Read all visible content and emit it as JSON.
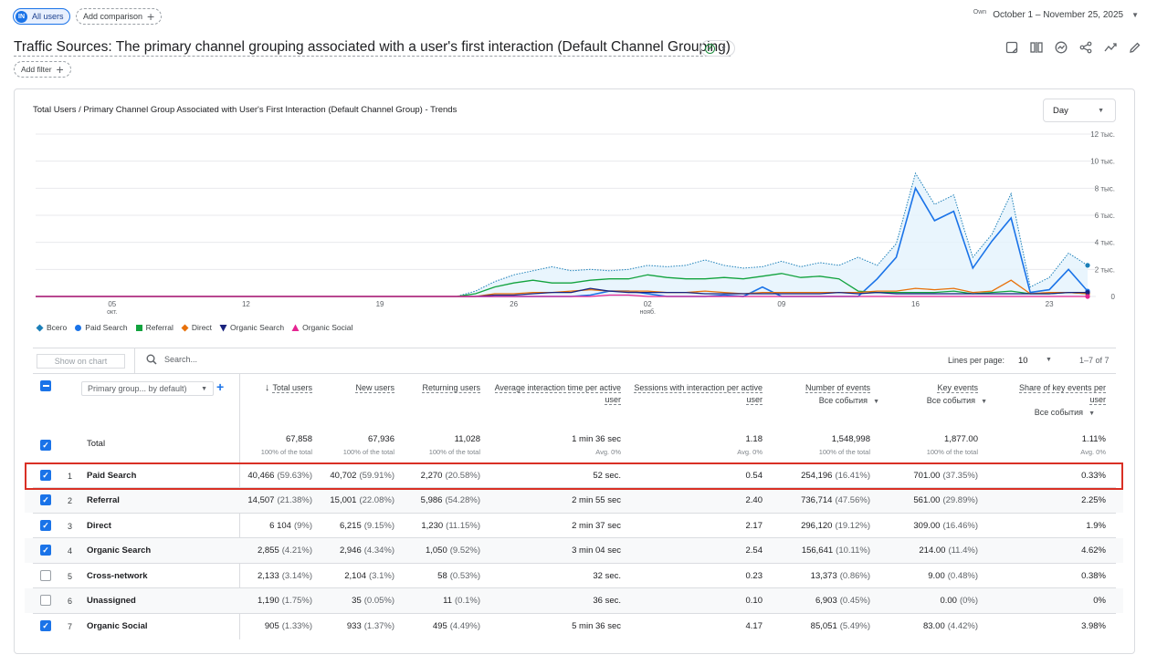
{
  "segment": {
    "avatar": "IN",
    "label": "All users"
  },
  "add_comparison": "Add comparison",
  "date": {
    "own": "Own",
    "range": "October 1 – November 25, 2025"
  },
  "report_title": "Traffic Sources: The primary channel grouping associated with a user's first interaction (Default Channel Grouping)",
  "add_filter": "Add filter",
  "toolbar_icons": [
    "edit-comparison-icon",
    "compare-columns-icon",
    "insights-icon",
    "share-icon",
    "trending-icon",
    "pencil-icon"
  ],
  "chart": {
    "title": "Total Users / Primary Channel Group Associated with User's First Interaction (Default Channel Group) - Trends",
    "granularity": "Day",
    "y_ticks": [
      "12 тыс.",
      "10 тыс.",
      "8 тыс.",
      "6 тыс.",
      "4 тыс.",
      "2 тыс.",
      "0"
    ],
    "x_ticks": [
      {
        "label": "05",
        "sub": "окт."
      },
      {
        "label": "12",
        "sub": ""
      },
      {
        "label": "19",
        "sub": ""
      },
      {
        "label": "26",
        "sub": ""
      },
      {
        "label": "02",
        "sub": "нояб."
      },
      {
        "label": "09",
        "sub": ""
      },
      {
        "label": "16",
        "sub": ""
      },
      {
        "label": "23",
        "sub": ""
      }
    ],
    "legend": [
      {
        "name": "Всего",
        "color": "#1b7fb8",
        "marker": "diamond"
      },
      {
        "name": "Paid Search",
        "color": "#1a73e8",
        "marker": "circle"
      },
      {
        "name": "Referral",
        "color": "#12a33e",
        "marker": "square"
      },
      {
        "name": "Direct",
        "color": "#e8710a",
        "marker": "diamond"
      },
      {
        "name": "Organic Search",
        "color": "#1a237e",
        "marker": "triangle-down"
      },
      {
        "name": "Organic Social",
        "color": "#e52592",
        "marker": "triangle"
      }
    ]
  },
  "chart_data": {
    "type": "line",
    "x": [
      "2025-10-01",
      "2025-10-02",
      "2025-10-03",
      "2025-10-04",
      "2025-10-05",
      "2025-10-06",
      "2025-10-07",
      "2025-10-08",
      "2025-10-09",
      "2025-10-10",
      "2025-10-11",
      "2025-10-12",
      "2025-10-13",
      "2025-10-14",
      "2025-10-15",
      "2025-10-16",
      "2025-10-17",
      "2025-10-18",
      "2025-10-19",
      "2025-10-20",
      "2025-10-21",
      "2025-10-22",
      "2025-10-23",
      "2025-10-24",
      "2025-10-25",
      "2025-10-26",
      "2025-10-27",
      "2025-10-28",
      "2025-10-29",
      "2025-10-30",
      "2025-10-31",
      "2025-11-01",
      "2025-11-02",
      "2025-11-03",
      "2025-11-04",
      "2025-11-05",
      "2025-11-06",
      "2025-11-07",
      "2025-11-08",
      "2025-11-09",
      "2025-11-10",
      "2025-11-11",
      "2025-11-12",
      "2025-11-13",
      "2025-11-14",
      "2025-11-15",
      "2025-11-16",
      "2025-11-17",
      "2025-11-18",
      "2025-11-19",
      "2025-11-20",
      "2025-11-21",
      "2025-11-22",
      "2025-11-23",
      "2025-11-24",
      "2025-11-25"
    ],
    "ylim": [
      0,
      12000
    ],
    "series": [
      {
        "name": "Всего",
        "values": [
          0,
          0,
          0,
          0,
          0,
          0,
          0,
          0,
          0,
          0,
          0,
          0,
          0,
          0,
          0,
          0,
          0,
          0,
          0,
          0,
          0,
          0,
          0,
          400,
          1100,
          1600,
          1900,
          2200,
          1900,
          2000,
          1900,
          2000,
          2300,
          2200,
          2300,
          2700,
          2300,
          2100,
          2200,
          2600,
          2200,
          2500,
          2300,
          2900,
          2300,
          3900,
          9100,
          6800,
          7500,
          2900,
          4600,
          7600,
          700,
          1400,
          3200,
          2300
        ]
      },
      {
        "name": "Paid Search",
        "values": [
          0,
          0,
          0,
          0,
          0,
          0,
          0,
          0,
          0,
          0,
          0,
          0,
          0,
          0,
          0,
          0,
          0,
          0,
          0,
          0,
          0,
          0,
          0,
          0,
          0,
          0,
          0,
          0,
          0,
          100,
          400,
          400,
          200,
          0,
          0,
          0,
          100,
          0,
          700,
          0,
          0,
          0,
          0,
          0,
          1300,
          2900,
          8000,
          5600,
          6300,
          2100,
          4100,
          5800,
          300,
          500,
          2000,
          400
        ]
      },
      {
        "name": "Referral",
        "values": [
          0,
          0,
          0,
          0,
          0,
          0,
          0,
          0,
          0,
          0,
          0,
          0,
          0,
          0,
          0,
          0,
          0,
          0,
          0,
          0,
          0,
          0,
          0,
          200,
          700,
          1000,
          1200,
          1000,
          1000,
          1200,
          1300,
          1300,
          1600,
          1400,
          1300,
          1300,
          1400,
          1300,
          1500,
          1700,
          1400,
          1500,
          1300,
          400,
          300,
          300,
          300,
          300,
          400,
          200,
          300,
          400,
          200,
          200,
          300,
          200
        ]
      },
      {
        "name": "Direct",
        "values": [
          0,
          0,
          0,
          0,
          0,
          0,
          0,
          0,
          0,
          0,
          0,
          0,
          0,
          0,
          0,
          0,
          0,
          0,
          0,
          0,
          0,
          0,
          0,
          0,
          200,
          200,
          300,
          300,
          400,
          500,
          400,
          400,
          400,
          300,
          300,
          400,
          300,
          200,
          300,
          300,
          300,
          300,
          300,
          300,
          400,
          400,
          600,
          500,
          600,
          300,
          400,
          1200,
          200,
          300,
          300,
          200
        ]
      },
      {
        "name": "Organic Search",
        "values": [
          0,
          0,
          0,
          0,
          0,
          0,
          0,
          0,
          0,
          0,
          0,
          0,
          0,
          0,
          0,
          0,
          0,
          0,
          0,
          0,
          0,
          0,
          0,
          0,
          100,
          100,
          200,
          300,
          300,
          600,
          400,
          300,
          300,
          300,
          300,
          200,
          200,
          200,
          200,
          200,
          200,
          200,
          300,
          200,
          300,
          200,
          200,
          200,
          200,
          200,
          200,
          200,
          200,
          200,
          300,
          300
        ]
      },
      {
        "name": "Organic Social",
        "values": [
          0,
          0,
          0,
          0,
          0,
          0,
          0,
          0,
          0,
          0,
          0,
          0,
          0,
          0,
          0,
          0,
          0,
          0,
          0,
          0,
          0,
          0,
          0,
          0,
          0,
          0,
          0,
          0,
          0,
          0,
          100,
          100,
          0,
          0,
          0,
          0,
          0,
          0,
          0,
          0,
          0,
          0,
          0,
          0,
          0,
          0,
          0,
          0,
          0,
          0,
          0,
          0,
          0,
          0,
          0,
          0
        ]
      }
    ],
    "xlabel": "",
    "ylabel": ""
  },
  "table_toolbar": {
    "show_on_chart": "Show on chart",
    "search_placeholder": "Search...",
    "lines_per_page_label": "Lines per page:",
    "lines_per_page": "10",
    "pagination": "1–7 of 7"
  },
  "dimension_select": "Primary group... by default)",
  "columns": [
    {
      "label": "Total users",
      "sorted": true,
      "filter": ""
    },
    {
      "label": "New users",
      "filter": ""
    },
    {
      "label": "Returning users",
      "filter": ""
    },
    {
      "label": "Average interaction time per active user",
      "filter": ""
    },
    {
      "label": "Sessions with interaction per active user",
      "filter": ""
    },
    {
      "label": "Number of events",
      "filter": "Все события"
    },
    {
      "label": "Key events",
      "filter": "Все события"
    },
    {
      "label": "Share of key events per user",
      "filter": "Все события"
    }
  ],
  "totals": {
    "label": "Total",
    "values": [
      "67,858",
      "67,936",
      "11,028",
      "1 min 36 sec",
      "1.18",
      "1,548,998",
      "1,877.00",
      "1.11%"
    ],
    "subs": [
      "100% of the total",
      "100% of the total",
      "100% of the total",
      "Avg. 0%",
      "Avg. 0%",
      "100% of the total",
      "100% of the total",
      "Avg. 0%"
    ]
  },
  "rows": [
    {
      "rank": "1",
      "name": "Paid Search",
      "checked": true,
      "cells": [
        [
          "40,466",
          "(59.63%)"
        ],
        [
          "40,702",
          "(59.91%)"
        ],
        [
          "2,270",
          "(20.58%)"
        ],
        [
          "52 sec.",
          ""
        ],
        [
          "0.54",
          ""
        ],
        [
          "254,196",
          "(16.41%)"
        ],
        [
          "701.00",
          "(37.35%)"
        ],
        [
          "0.33%",
          ""
        ]
      ]
    },
    {
      "rank": "2",
      "name": "Referral",
      "checked": true,
      "cells": [
        [
          "14,507",
          "(21.38%)"
        ],
        [
          "15,001",
          "(22.08%)"
        ],
        [
          "5,986",
          "(54.28%)"
        ],
        [
          "2 min 55 sec",
          ""
        ],
        [
          "2.40",
          ""
        ],
        [
          "736,714",
          "(47.56%)"
        ],
        [
          "561.00",
          "(29.89%)"
        ],
        [
          "2.25%",
          ""
        ]
      ]
    },
    {
      "rank": "3",
      "name": "Direct",
      "checked": true,
      "cells": [
        [
          "6 104",
          "(9%)"
        ],
        [
          "6,215",
          "(9.15%)"
        ],
        [
          "1,230",
          "(11.15%)"
        ],
        [
          "2 min 37 sec",
          ""
        ],
        [
          "2.17",
          ""
        ],
        [
          "296,120",
          "(19.12%)"
        ],
        [
          "309.00",
          "(16.46%)"
        ],
        [
          "1.9%",
          ""
        ]
      ]
    },
    {
      "rank": "4",
      "name": "Organic Search",
      "checked": true,
      "cells": [
        [
          "2,855",
          "(4.21%)"
        ],
        [
          "2,946",
          "(4.34%)"
        ],
        [
          "1,050",
          "(9.52%)"
        ],
        [
          "3 min 04 sec",
          ""
        ],
        [
          "2.54",
          ""
        ],
        [
          "156,641",
          "(10.11%)"
        ],
        [
          "214.00",
          "(11.4%)"
        ],
        [
          "4.62%",
          ""
        ]
      ]
    },
    {
      "rank": "5",
      "name": "Cross-network",
      "checked": false,
      "cells": [
        [
          "2,133",
          "(3.14%)"
        ],
        [
          "2,104",
          "(3.1%)"
        ],
        [
          "58",
          "(0.53%)"
        ],
        [
          "32 sec.",
          ""
        ],
        [
          "0.23",
          ""
        ],
        [
          "13,373",
          "(0.86%)"
        ],
        [
          "9.00",
          "(0.48%)"
        ],
        [
          "0.38%",
          ""
        ]
      ]
    },
    {
      "rank": "6",
      "name": "Unassigned",
      "checked": false,
      "cells": [
        [
          "1,190",
          "(1.75%)"
        ],
        [
          "35",
          "(0.05%)"
        ],
        [
          "11",
          "(0.1%)"
        ],
        [
          "36 sec.",
          ""
        ],
        [
          "0.10",
          ""
        ],
        [
          "6,903",
          "(0.45%)"
        ],
        [
          "0.00",
          "(0%)"
        ],
        [
          "0%",
          ""
        ]
      ]
    },
    {
      "rank": "7",
      "name": "Organic Social",
      "checked": true,
      "cells": [
        [
          "905",
          "(1.33%)"
        ],
        [
          "933",
          "(1.37%)"
        ],
        [
          "495",
          "(4.49%)"
        ],
        [
          "5 min 36 sec",
          ""
        ],
        [
          "4.17",
          ""
        ],
        [
          "85,051",
          "(5.49%)"
        ],
        [
          "83.00",
          "(4.42%)"
        ],
        [
          "3.98%",
          ""
        ]
      ]
    }
  ]
}
